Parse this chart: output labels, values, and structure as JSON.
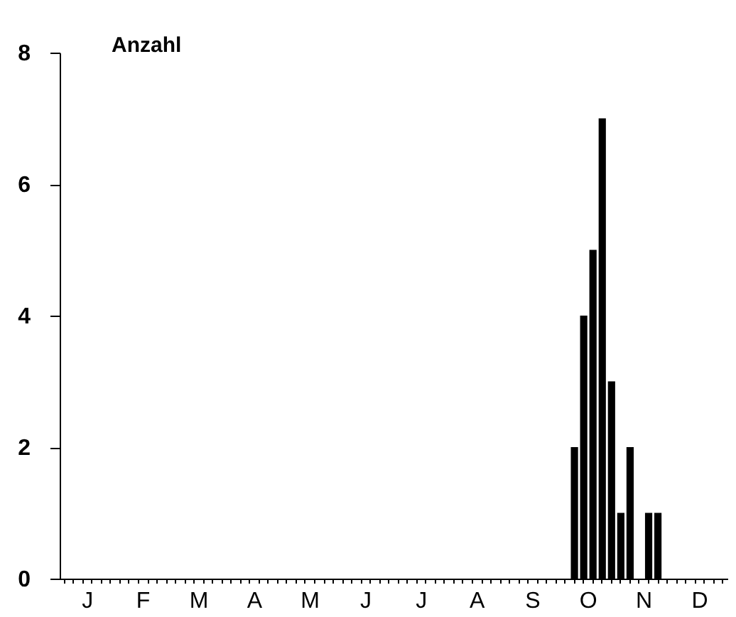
{
  "chart_data": {
    "type": "bar",
    "ylabel": "Anzahl",
    "categories": [
      null,
      null,
      null,
      "J",
      null,
      null,
      null,
      null,
      null,
      "F",
      null,
      null,
      null,
      null,
      null,
      "M",
      null,
      null,
      null,
      null,
      null,
      "A",
      null,
      null,
      null,
      null,
      null,
      "M",
      null,
      null,
      null,
      null,
      null,
      "J",
      null,
      null,
      null,
      null,
      null,
      "J",
      null,
      null,
      null,
      null,
      null,
      "A",
      null,
      null,
      null,
      null,
      null,
      "S",
      null,
      null,
      null,
      null,
      null,
      "O",
      null,
      null,
      null,
      null,
      null,
      "N",
      null,
      null,
      null,
      null,
      null,
      "D",
      null,
      null
    ],
    "values": [
      0,
      0,
      0,
      0,
      0,
      0,
      0,
      0,
      0,
      0,
      0,
      0,
      0,
      0,
      0,
      0,
      0,
      0,
      0,
      0,
      0,
      0,
      0,
      0,
      0,
      0,
      0,
      0,
      0,
      0,
      0,
      0,
      0,
      0,
      0,
      0,
      0,
      0,
      0,
      0,
      0,
      0,
      0,
      0,
      0,
      0,
      0,
      0,
      0,
      0,
      0,
      0,
      0,
      0,
      0,
      2,
      4,
      5,
      7,
      3,
      1,
      2,
      0,
      1,
      1,
      0,
      0,
      0,
      0,
      0,
      0,
      0
    ],
    "color": "#000000",
    "ylim": [
      0,
      8
    ],
    "yticks": [
      0,
      2,
      4,
      6,
      8
    ],
    "grid": false
  }
}
